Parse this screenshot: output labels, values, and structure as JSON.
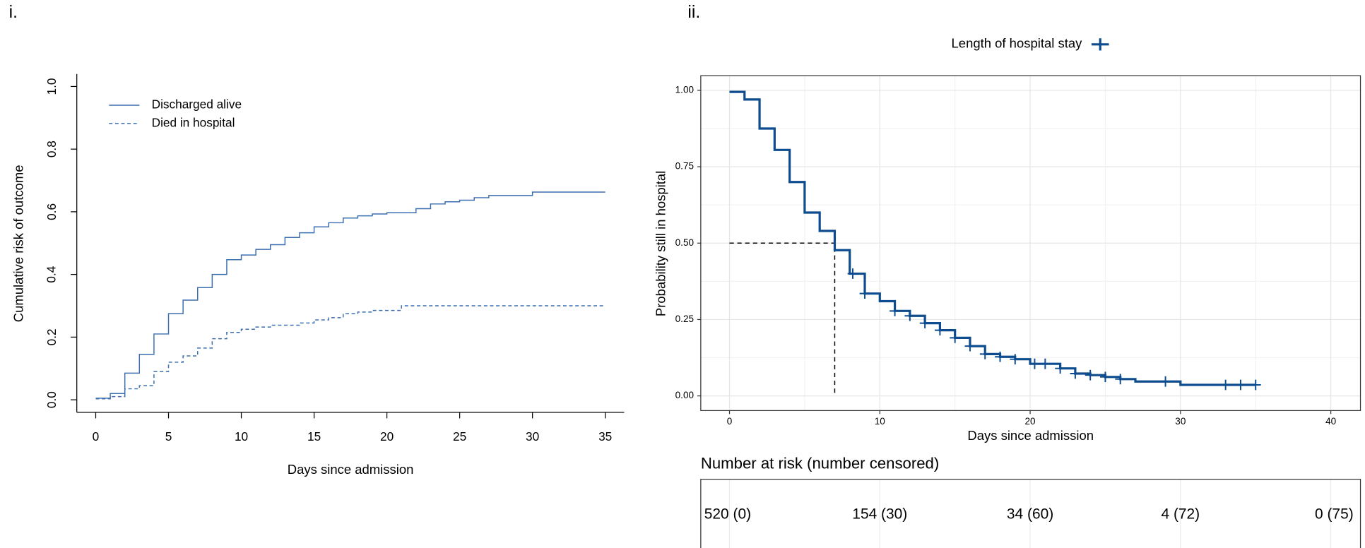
{
  "chart_data": [
    {
      "type": "step",
      "panel_label": "i.",
      "xlabel": "Days since admission",
      "ylabel": "Cumulative risk of outcome",
      "xlim": [
        -1.3,
        36.3
      ],
      "ylim": [
        -0.04,
        1.04
      ],
      "xticks": [
        0,
        5,
        10,
        15,
        20,
        25,
        30,
        35
      ],
      "yticks": [
        {
          "value": 0,
          "label": "0.0"
        },
        {
          "value": 0.2,
          "label": "0.2"
        },
        {
          "value": 0.4,
          "label": "0.4"
        },
        {
          "value": 0.6,
          "label": "0.6"
        },
        {
          "value": 0.8,
          "label": "0.8"
        },
        {
          "value": 1,
          "label": "1.0"
        }
      ],
      "grid": false,
      "legend": "top-left",
      "series": [
        {
          "name": "Discharged alive",
          "color": "#3c6fb0",
          "dashed": false,
          "x": [
            0,
            1,
            2,
            3,
            4,
            5,
            6,
            7,
            8,
            9,
            10,
            11,
            12,
            13,
            14,
            15,
            16,
            17,
            18,
            19,
            20,
            22,
            23,
            24,
            25,
            26,
            27,
            30,
            35
          ],
          "values": [
            0.005,
            0.02,
            0.085,
            0.145,
            0.21,
            0.275,
            0.318,
            0.358,
            0.4,
            0.447,
            0.462,
            0.48,
            0.495,
            0.518,
            0.533,
            0.552,
            0.565,
            0.58,
            0.587,
            0.593,
            0.597,
            0.61,
            0.625,
            0.632,
            0.637,
            0.645,
            0.652,
            0.663,
            0.663
          ]
        },
        {
          "name": "Died in hospital",
          "color": "#3c6fb0",
          "dashed": true,
          "x": [
            0,
            1,
            2,
            3,
            4,
            5,
            6,
            7,
            8,
            9,
            10,
            11,
            12,
            14,
            15,
            16,
            17,
            18,
            19,
            21,
            35
          ],
          "values": [
            0.003,
            0.01,
            0.035,
            0.045,
            0.09,
            0.12,
            0.14,
            0.165,
            0.195,
            0.215,
            0.225,
            0.232,
            0.238,
            0.245,
            0.255,
            0.262,
            0.275,
            0.28,
            0.285,
            0.3,
            0.3
          ]
        }
      ]
    },
    {
      "type": "km",
      "panel_label": "ii.",
      "xlabel": "Days since admission",
      "ylabel": "Probability still in hospital",
      "xlim": [
        -1.91,
        41.97
      ],
      "ylim": [
        -0.048,
        1.048
      ],
      "xticks": [
        0,
        10,
        20,
        30,
        40
      ],
      "yticks": [
        {
          "value": 0,
          "label": "0.00"
        },
        {
          "value": 0.25,
          "label": "0.25"
        },
        {
          "value": 0.5,
          "label": "0.50"
        },
        {
          "value": 0.75,
          "label": "0.75"
        },
        {
          "value": 1,
          "label": "1.00"
        }
      ],
      "grid": true,
      "legend": "top",
      "series": [
        {
          "name": "Length of hospital stay",
          "color": "#0d4c8f",
          "x": [
            0,
            1,
            2,
            3,
            4,
            5,
            6,
            7,
            8,
            9,
            10,
            11,
            12,
            13,
            14,
            15,
            16,
            17,
            18,
            19,
            20,
            22,
            23,
            24,
            25,
            26,
            27,
            30,
            35
          ],
          "values": [
            0.995,
            0.97,
            0.875,
            0.805,
            0.7,
            0.6,
            0.54,
            0.477,
            0.4,
            0.335,
            0.31,
            0.278,
            0.262,
            0.238,
            0.215,
            0.19,
            0.163,
            0.137,
            0.128,
            0.12,
            0.105,
            0.09,
            0.073,
            0.068,
            0.062,
            0.055,
            0.047,
            0.036,
            0.036
          ],
          "censored": {
            "x": [
              8.2,
              9,
              11,
              12,
              13,
              14,
              15,
              16,
              17,
              18,
              19,
              20.3,
              21,
              22,
              23,
              24,
              25,
              26,
              29,
              33,
              34,
              35
            ],
            "values": [
              0.4,
              0.335,
              0.278,
              0.262,
              0.238,
              0.215,
              0.19,
              0.163,
              0.137,
              0.128,
              0.12,
              0.105,
              0.105,
              0.09,
              0.073,
              0.068,
              0.062,
              0.055,
              0.047,
              0.036,
              0.036,
              0.036
            ]
          }
        }
      ],
      "median": {
        "x": 7,
        "y": 0.5
      },
      "risk_table": {
        "title": "Number at risk (number censored)",
        "times": [
          0,
          10,
          20,
          30,
          40
        ],
        "labels": [
          "520 (0)",
          "154 (30)",
          "34 (60)",
          "4 (72)",
          "0 (75)"
        ]
      }
    }
  ]
}
